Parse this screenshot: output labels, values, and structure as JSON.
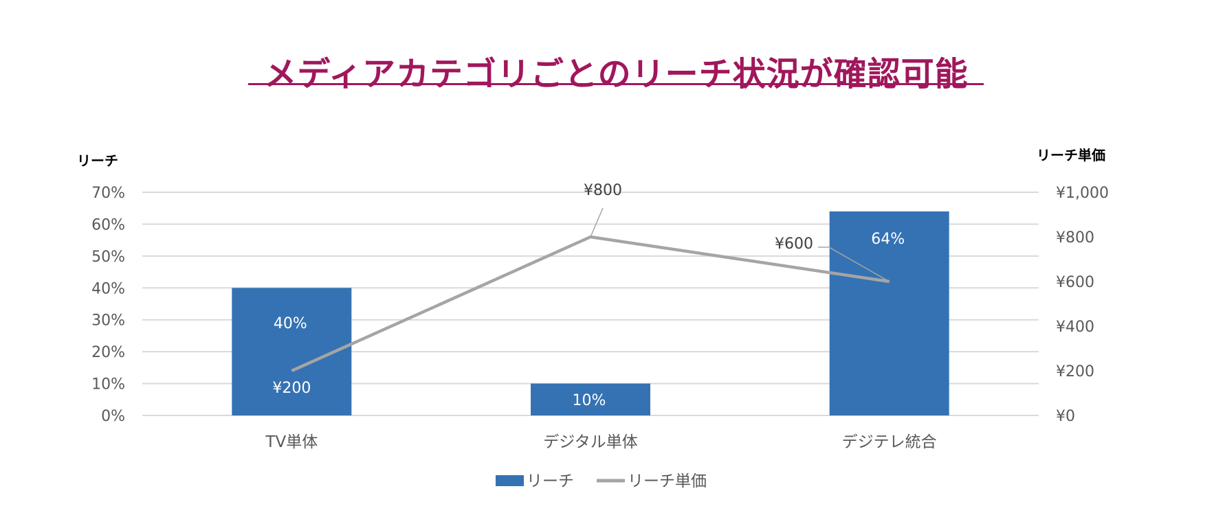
{
  "title": "メディアカテゴリごとのリーチ状況が確認可能",
  "colors": {
    "title": "#A0175C",
    "bar": "#3572B3",
    "line": "#A5A5A5",
    "grid": "#D9D9D9"
  },
  "chart_data": {
    "type": "bar+line",
    "categories": [
      "TV単体",
      "デジタル単体",
      "デジテレ統合"
    ],
    "series": [
      {
        "name": "リーチ",
        "type": "bar",
        "axis": "left",
        "values": [
          0.4,
          0.1,
          0.64
        ],
        "labels": [
          "40%",
          "10%",
          "64%"
        ]
      },
      {
        "name": "リーチ単価",
        "type": "line",
        "axis": "right",
        "values": [
          200,
          800,
          600
        ],
        "labels": [
          "¥200",
          "¥800",
          "¥600"
        ]
      }
    ],
    "y_left": {
      "title": "リーチ",
      "range": [
        0,
        0.7
      ],
      "ticks": [
        "0%",
        "10%",
        "20%",
        "30%",
        "40%",
        "50%",
        "60%",
        "70%"
      ]
    },
    "y_right": {
      "title": "リーチ単価",
      "range": [
        0,
        1000
      ],
      "ticks": [
        "¥0",
        "¥200",
        "¥400",
        "¥600",
        "¥800",
        "¥1,000"
      ]
    },
    "grid": true,
    "legend": {
      "position": "bottom",
      "entries": [
        "リーチ",
        "リーチ単価"
      ]
    }
  }
}
